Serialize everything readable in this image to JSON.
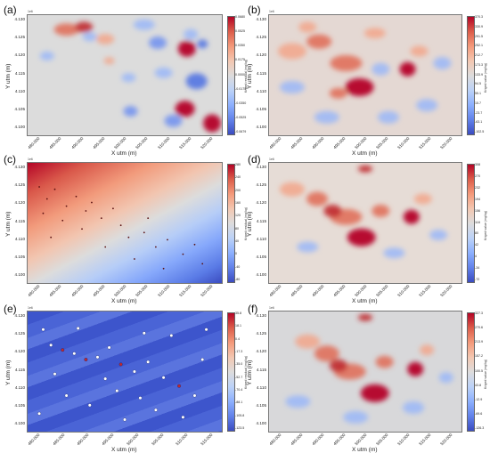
{
  "chart_data": [
    {
      "type": "heatmap",
      "panel": "(a)",
      "y_exponent": "1e6",
      "xlabel": "X utm (m)",
      "ylabel": "Y utm (m)",
      "x_ticks": [
        "480.000",
        "485.000",
        "490.000",
        "495.000",
        "500.000",
        "505.000",
        "510.000",
        "515.000",
        "520.000"
      ],
      "y_ticks": [
        "4.130",
        "4.125",
        "4.120",
        "4.115",
        "4.110",
        "4.105",
        "4.100"
      ],
      "colorbar": {
        "label": "Kriged residual (mg/kg)",
        "ticks": [
          "0.0680",
          "0.0525",
          "0.0350",
          "0.0175",
          "0.0000",
          "-0.0175",
          "-0.0350",
          "-0.0525",
          "-0.0679"
        ],
        "colormap": "coolwarm"
      }
    },
    {
      "type": "heatmap",
      "panel": "(b)",
      "y_exponent": "1e6",
      "xlabel": "X utm (m)",
      "ylabel": "Y utm (m)",
      "x_ticks": [
        "480.000",
        "485.000",
        "490.000",
        "495.000",
        "500.000",
        "505.000",
        "510.000",
        "515.000",
        "520.000"
      ],
      "y_ticks": [
        "4.130",
        "4.125",
        "4.120",
        "4.115",
        "4.110",
        "4.105",
        "4.100"
      ],
      "colorbar": {
        "label": "Kriged value (mg/kg)",
        "ticks": [
          "370.3",
          "330.9",
          "291.5",
          "252.1",
          "212.7",
          "173.3",
          "133.9",
          "94.5",
          "55.1",
          "15.7",
          "-23.7",
          "-63.1",
          "-102.5"
        ],
        "colormap": "coolwarm"
      }
    },
    {
      "type": "heatmap",
      "panel": "(c)",
      "y_exponent": "1e6",
      "xlabel": "X utm (m)",
      "ylabel": "Y utm (m)",
      "x_ticks": [
        "480.000",
        "485.000",
        "490.000",
        "495.000",
        "500.000",
        "505.000",
        "510.000",
        "515.000",
        "520.000"
      ],
      "y_ticks": [
        "4.130",
        "4.125",
        "4.120",
        "4.115",
        "4.110",
        "4.105",
        "4.100"
      ],
      "colorbar": {
        "label": "Kriged residual (mg/kg)",
        "ticks": [
          "280",
          "240",
          "200",
          "160",
          "120",
          "80",
          "40",
          "0",
          "-40",
          "-80"
        ],
        "colormap": "coolwarm"
      }
    },
    {
      "type": "heatmap",
      "panel": "(d)",
      "y_exponent": "1e6",
      "xlabel": "X utm (m)",
      "ylabel": "Y utm (m)",
      "x_ticks": [
        "480.000",
        "485.000",
        "490.000",
        "495.000",
        "500.000",
        "505.000",
        "510.000",
        "515.000",
        "520.000"
      ],
      "y_ticks": [
        "4.130",
        "4.125",
        "4.120",
        "4.115",
        "4.110",
        "4.105",
        "4.100"
      ],
      "colorbar": {
        "label": "Kriged value (mg/kg)",
        "ticks": [
          "308",
          "270",
          "232",
          "194",
          "156",
          "118",
          "80",
          "42",
          "4",
          "-34",
          "-72"
        ],
        "colormap": "coolwarm"
      }
    },
    {
      "type": "heatmap",
      "panel": "(e)",
      "y_exponent": "1e6",
      "xlabel": "X utm (m)",
      "ylabel": "Y utm (m)",
      "x_ticks": [
        "480.000",
        "485.000",
        "490.000",
        "495.000",
        "500.000",
        "505.000",
        "510.000",
        "515.000"
      ],
      "y_ticks": [
        "4.130",
        "4.125",
        "4.120",
        "4.115",
        "4.110",
        "4.105",
        "4.100"
      ],
      "colorbar": {
        "label": "Kriged residual (mg/kg)",
        "ticks": [
          "35.8",
          "18.1",
          "0.4",
          "-17.3",
          "-35.0",
          "-52.7",
          "-70.4",
          "-88.1",
          "-105.8",
          "-123.5"
        ],
        "colormap": "coolwarm"
      }
    },
    {
      "type": "heatmap",
      "panel": "(f)",
      "y_exponent": "1e6",
      "xlabel": "X utm (m)",
      "ylabel": "Y utm (m)",
      "x_ticks": [
        "480.000",
        "485.000",
        "490.000",
        "495.000",
        "500.000",
        "505.000",
        "510.000",
        "515.000",
        "520.000"
      ],
      "y_ticks": [
        "4.130",
        "4.125",
        "4.120",
        "4.115",
        "4.110",
        "4.105",
        "4.100"
      ],
      "colorbar": {
        "label": "Kriged value (mg/kg)",
        "ticks": [
          "327.3",
          "270.6",
          "213.9",
          "157.2",
          "100.5",
          "43.8",
          "-12.9",
          "-69.6",
          "-126.3"
        ],
        "colormap": "coolwarm"
      }
    }
  ]
}
